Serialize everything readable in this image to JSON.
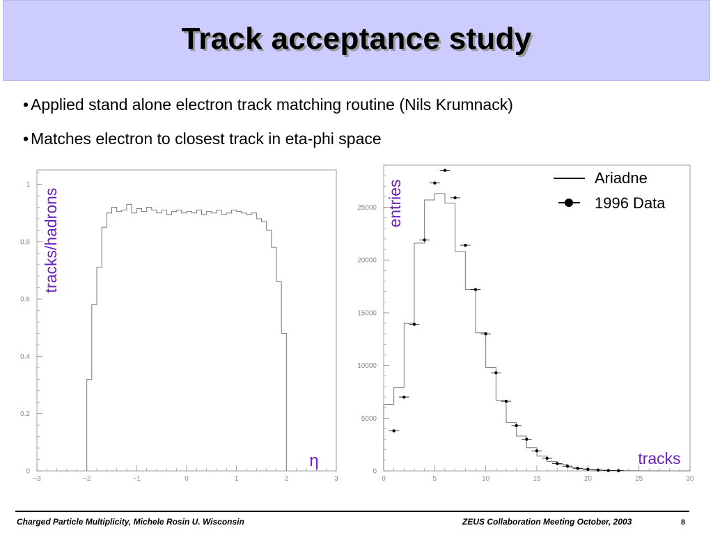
{
  "title": "Track acceptance study",
  "bullets": [
    "Applied stand alone electron track matching routine (Nils Krumnack)",
    "Matches electron to closest track in eta-phi space"
  ],
  "bullet_glyph": "•",
  "footer": {
    "left": "Charged Particle Multiplicity, Michele Rosin U. Wisconsin",
    "right": "ZEUS Collaboration Meeting October, 2003",
    "page": "8"
  },
  "chart_data": [
    {
      "type": "line",
      "ylabel": "tracks/hadrons",
      "xlabel": "η",
      "xlim": [
        -3,
        3
      ],
      "ylim": [
        0,
        1.05
      ],
      "xticks": [
        -3,
        -2,
        -1,
        0,
        1,
        2,
        3
      ],
      "xtick_labels": [
        "−3",
        "−2",
        "−1",
        "0",
        "1",
        "2",
        "3"
      ],
      "yticks": [
        0,
        0.2,
        0.4,
        0.6,
        0.8,
        1
      ],
      "ytick_labels": [
        "0",
        "0.2",
        "0.4",
        "0.6",
        "0.8",
        "1"
      ],
      "grid": false,
      "series": [
        {
          "style": "histogram",
          "x": [
            -2,
            -1.9,
            -1.8,
            -1.7,
            -1.6,
            -1.5,
            -1.4,
            -1.3,
            -1.2,
            -1.1,
            -1.0,
            -0.9,
            -0.8,
            -0.7,
            -0.6,
            -0.5,
            -0.4,
            -0.3,
            -0.2,
            -0.1,
            0.0,
            0.1,
            0.2,
            0.3,
            0.4,
            0.5,
            0.6,
            0.7,
            0.8,
            0.9,
            1.0,
            1.1,
            1.2,
            1.3,
            1.4,
            1.5,
            1.6,
            1.7,
            1.8,
            1.9
          ],
          "values": [
            0.32,
            0.58,
            0.71,
            0.85,
            0.9,
            0.92,
            0.905,
            0.91,
            0.93,
            0.9,
            0.915,
            0.905,
            0.92,
            0.91,
            0.9,
            0.91,
            0.895,
            0.905,
            0.91,
            0.9,
            0.905,
            0.9,
            0.91,
            0.895,
            0.905,
            0.9,
            0.91,
            0.895,
            0.9,
            0.91,
            0.905,
            0.9,
            0.895,
            0.9,
            0.88,
            0.87,
            0.84,
            0.78,
            0.66,
            0.48
          ],
          "bin_width": 0.1
        }
      ]
    },
    {
      "type": "bar",
      "ylabel": "entries",
      "xlabel": "tracks",
      "xlim": [
        0,
        30
      ],
      "ylim": [
        0,
        29000
      ],
      "xticks": [
        0,
        5,
        10,
        15,
        20,
        25,
        30
      ],
      "xtick_labels": [
        "0",
        "5",
        "10",
        "15",
        "20",
        "25",
        "30"
      ],
      "yticks": [
        0,
        5000,
        10000,
        15000,
        20000,
        25000
      ],
      "ytick_labels": [
        "0",
        "5000",
        "10000",
        "15000",
        "20000",
        "25000"
      ],
      "legend_position": "top-right",
      "grid": false,
      "series": [
        {
          "name": "Ariadne",
          "style": "histogram",
          "bin_edges": [
            0,
            1,
            2,
            3,
            4,
            5,
            6,
            7,
            8,
            9,
            10,
            11,
            12,
            13,
            14,
            15,
            16,
            17,
            18,
            19,
            20,
            21,
            22,
            23,
            24,
            25,
            26,
            27,
            28,
            29,
            30
          ],
          "values": [
            6300,
            7900,
            14000,
            21600,
            25700,
            26300,
            25400,
            20800,
            17200,
            13100,
            9800,
            6700,
            4600,
            3300,
            2200,
            1400,
            900,
            600,
            350,
            200,
            120,
            70,
            40,
            25,
            15,
            10,
            5,
            3,
            2,
            1
          ]
        },
        {
          "name": "1996 Data",
          "style": "points",
          "x": [
            1,
            2,
            3,
            4,
            5,
            6,
            7,
            8,
            9,
            10,
            11,
            12,
            13,
            14,
            15,
            16,
            17,
            18,
            19,
            20,
            21,
            22,
            23
          ],
          "values": [
            3800,
            7000,
            13900,
            21900,
            27300,
            28500,
            25900,
            21400,
            17200,
            13000,
            9300,
            6600,
            4300,
            3000,
            1900,
            1200,
            700,
            450,
            250,
            150,
            80,
            40,
            20
          ]
        }
      ]
    }
  ]
}
